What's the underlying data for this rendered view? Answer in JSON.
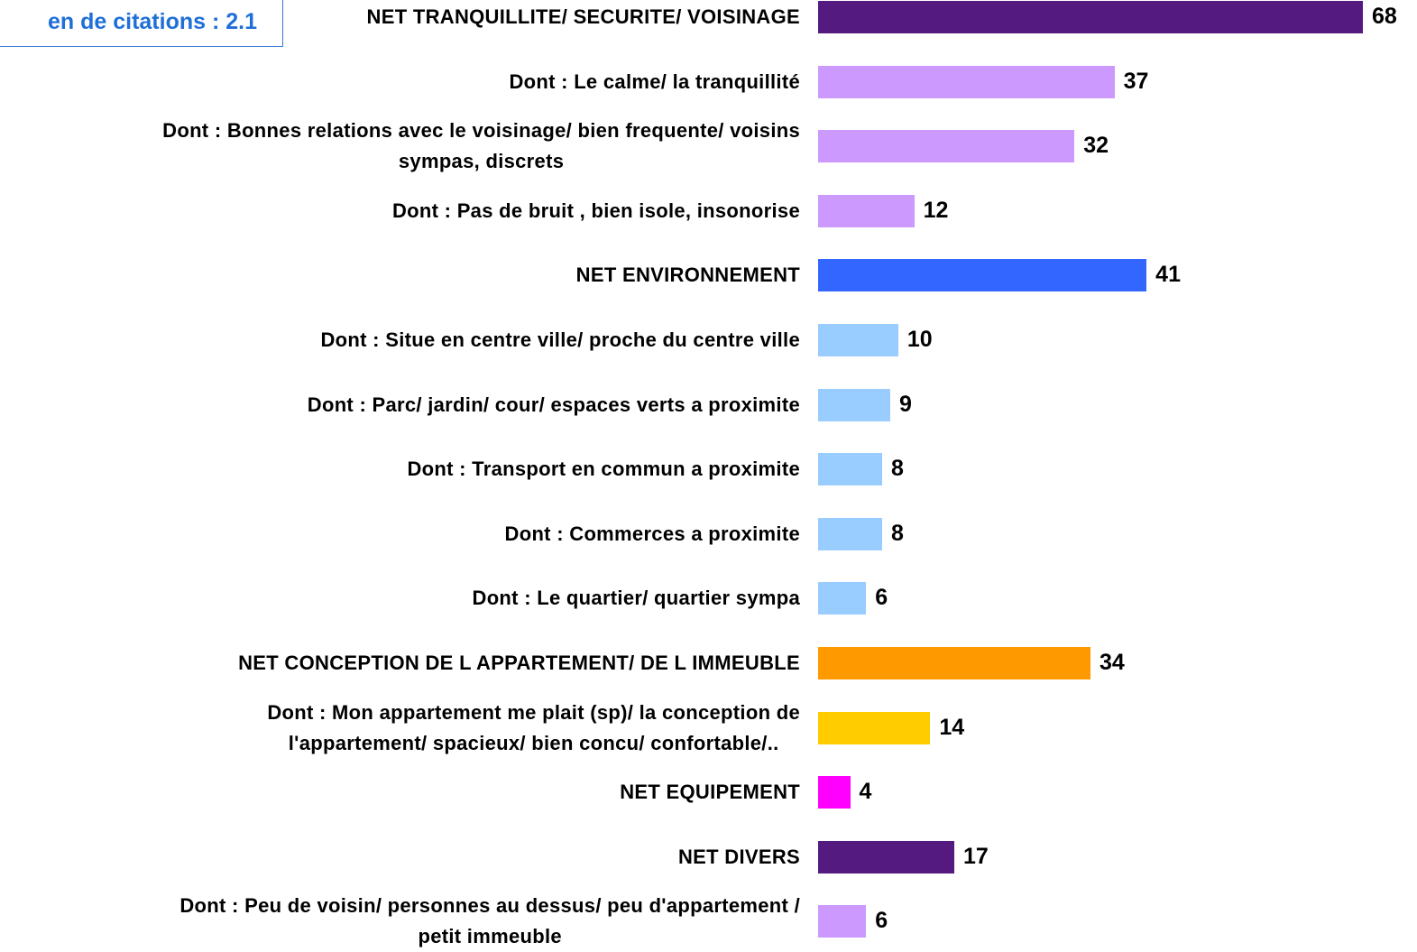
{
  "chart_data": {
    "type": "bar",
    "orientation": "horizontal",
    "annotation": "en de citations : 2.1",
    "categories": [
      "NET TRANQUILLITE/ SECURITE/ VOISINAGE",
      "Dont : Le calme/ la tranquillité",
      "Dont : Bonnes relations avec le voisinage/ bien frequente/ voisins\nsympas, discrets",
      "Dont : Pas de bruit , bien isole, insonorise",
      "NET ENVIRONNEMENT",
      "Dont : Situe en centre ville/ proche du centre ville",
      "Dont : Parc/ jardin/ cour/ espaces verts a proximite",
      "Dont : Transport en commun a proximite",
      "Dont : Commerces  a proximite",
      "Dont : Le quartier/ quartier sympa",
      "NET CONCEPTION DE L APPARTEMENT/ DE L IMMEUBLE",
      "Dont : Mon appartement me plait (sp)/ la conception de\nl'appartement/ spacieux/ bien concu/  confortable/..",
      "NET EQUIPEMENT",
      "NET DIVERS",
      "Dont : Peu de voisin/ personnes au dessus/ peu d'appartement /\npetit immeuble"
    ],
    "values": [
      68,
      37,
      32,
      12,
      41,
      10,
      9,
      8,
      8,
      6,
      34,
      14,
      4,
      17,
      6
    ],
    "colors": [
      "#551a80",
      "#cc99ff",
      "#cc99ff",
      "#cc99ff",
      "#3366ff",
      "#99ccff",
      "#99ccff",
      "#99ccff",
      "#99ccff",
      "#99ccff",
      "#ff9900",
      "#ffcc00",
      "#ff00ff",
      "#551a80",
      "#cc99ff"
    ]
  }
}
